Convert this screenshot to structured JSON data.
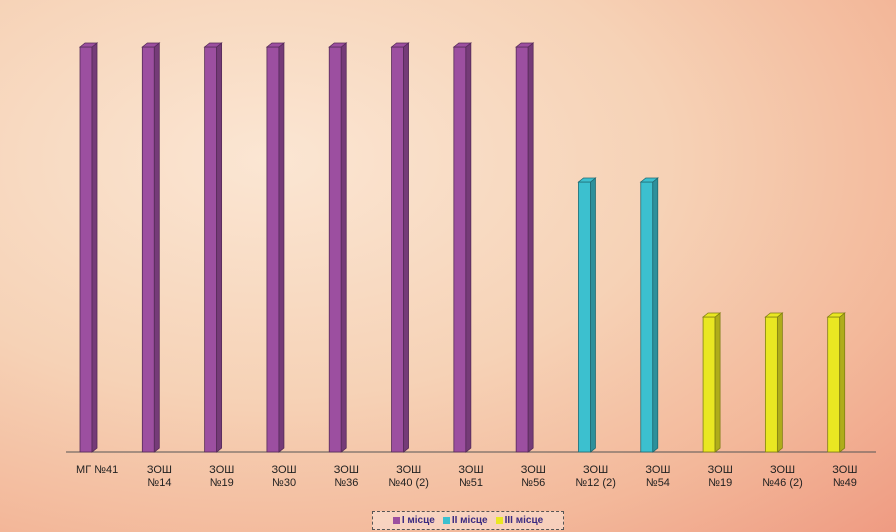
{
  "chart_data": {
    "type": "bar",
    "categories": [
      "МГ №41",
      "ЗОШ\n№14",
      "ЗОШ\n№19",
      "ЗОШ\n№30",
      "ЗОШ\n№36",
      "ЗОШ\n№40 (2)",
      "ЗОШ\n№51",
      "ЗОШ\n№56",
      "ЗОШ\n№12 (2)",
      "ЗОШ\n№54",
      "ЗОШ\n№19",
      "ЗОШ\n№46 (2)",
      "ЗОШ\n№49"
    ],
    "series": [
      {
        "name": "І місце",
        "color": "#9c4fa0",
        "values": [
          3,
          3,
          3,
          3,
          3,
          3,
          3,
          3,
          null,
          null,
          null,
          null,
          null
        ]
      },
      {
        "name": "ІІ місце",
        "color": "#3cc0cf",
        "values": [
          null,
          null,
          null,
          null,
          null,
          null,
          null,
          null,
          2,
          2,
          null,
          null,
          null
        ]
      },
      {
        "name": "ІІІ місце",
        "color": "#e9e722",
        "values": [
          null,
          null,
          null,
          null,
          null,
          null,
          null,
          null,
          null,
          null,
          1,
          1,
          1
        ]
      }
    ],
    "legend": "bottom"
  }
}
